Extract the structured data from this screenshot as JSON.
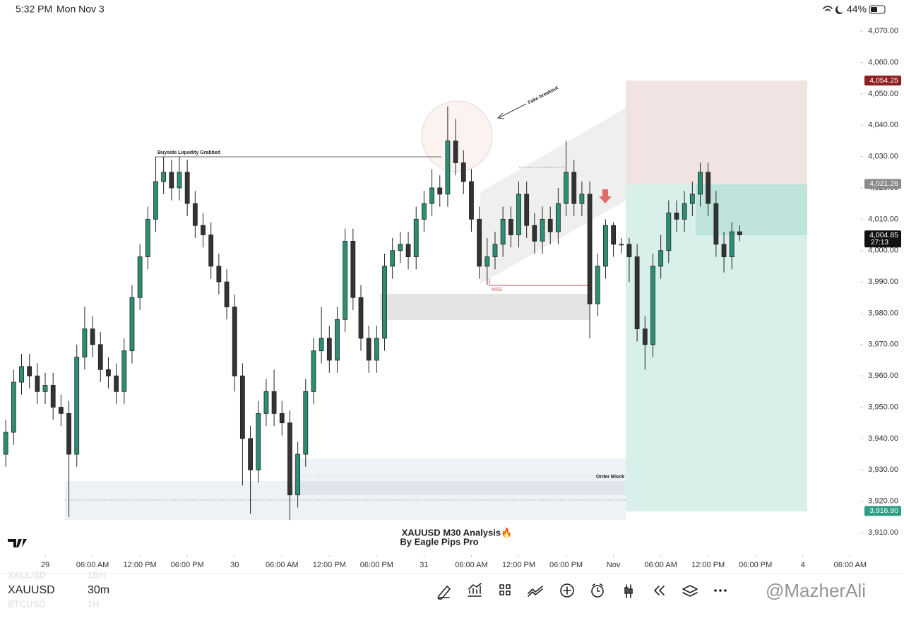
{
  "status_bar": {
    "time": "5:32 PM",
    "date": "Mon Nov 3",
    "battery": "44%"
  },
  "chart_data": {
    "type": "candlestick",
    "title": "XAUUSD M30 Analysis🔥",
    "subtitle": "By Eagle Pips Pro",
    "x": [
      -5,
      -4,
      -3,
      -2,
      -1,
      0,
      1,
      2,
      3,
      4,
      5,
      6,
      7,
      8,
      9,
      10,
      11,
      12,
      13,
      14,
      15,
      16,
      17,
      18,
      19,
      20,
      21,
      22,
      23,
      24,
      25,
      26,
      27,
      28,
      29,
      30,
      31,
      32,
      33,
      34,
      35,
      36,
      37,
      38,
      39,
      40,
      41,
      42,
      43,
      44,
      45,
      46,
      47,
      48,
      49,
      50,
      51,
      52,
      53,
      54,
      55,
      56,
      57,
      58,
      59,
      60,
      61,
      62,
      63,
      64,
      65,
      66,
      67,
      68,
      69,
      70,
      71,
      72,
      73,
      74,
      75,
      76,
      77,
      78,
      79,
      80,
      81,
      82,
      83,
      84,
      85,
      86,
      87,
      88
    ],
    "open": [
      3935,
      3942,
      3958,
      3963,
      3960,
      3955,
      3957,
      3950,
      3948,
      3935,
      3966,
      3975,
      3970,
      3962,
      3960,
      3955,
      3968,
      3985,
      3998,
      4010,
      4022,
      4025,
      4020,
      4025,
      4015,
      4008,
      4005,
      3995,
      3990,
      3982,
      3960,
      3940,
      3930,
      3948,
      3955,
      3948,
      3945,
      3922,
      3935,
      3955,
      3968,
      3972,
      3965,
      3978,
      4003,
      3985,
      3972,
      3965,
      3972,
      3995,
      4000,
      4002,
      3998,
      4010,
      4015,
      4020,
      4018,
      4035,
      4028,
      4022,
      4010,
      3995,
      3998,
      4002,
      4010,
      4005,
      4018,
      4008,
      4003,
      4010,
      4006,
      4015,
      4025,
      4015,
      4018,
      3983,
      3995,
      4008,
      4002,
      4002,
      3998,
      3975,
      3970,
      3995,
      4000,
      4012,
      4010,
      4015,
      4018,
      4025,
      4015,
      4002,
      3998,
      4006
    ],
    "high": [
      3946,
      3962,
      3967,
      3967,
      3964,
      3961,
      3961,
      3954,
      3952,
      3970,
      3982,
      3979,
      3974,
      3966,
      3964,
      3972,
      3989,
      4002,
      4014,
      4030,
      4030,
      4029,
      4030,
      4029,
      4019,
      4012,
      4009,
      3999,
      3994,
      3986,
      3964,
      3944,
      3952,
      3959,
      3962,
      3952,
      3949,
      3939,
      3959,
      3972,
      3982,
      3976,
      3982,
      4007,
      4007,
      3989,
      3976,
      3976,
      3999,
      4004,
      4006,
      4006,
      4014,
      4019,
      4026,
      4024,
      4046,
      4042,
      4032,
      4026,
      4014,
      4004,
      4006,
      4014,
      4014,
      4022,
      4022,
      4012,
      4014,
      4014,
      4020,
      4035,
      4029,
      4022,
      4022,
      3999,
      4010,
      4009,
      4004,
      4004,
      4002,
      3979,
      3999,
      4005,
      4016,
      4016,
      4019,
      4022,
      4028,
      4028,
      4019,
      4006,
      4009,
      4008
    ],
    "low": [
      3931,
      3938,
      3954,
      3956,
      3951,
      3951,
      3946,
      3944,
      3915,
      3931,
      3962,
      3966,
      3958,
      3956,
      3951,
      3951,
      3964,
      3981,
      3994,
      4006,
      4018,
      4016,
      4016,
      4011,
      4004,
      4001,
      3991,
      3986,
      3978,
      3955,
      3925,
      3916,
      3926,
      3944,
      3944,
      3941,
      3914,
      3918,
      3931,
      3951,
      3964,
      3961,
      3961,
      3974,
      3981,
      3968,
      3961,
      3961,
      3968,
      3991,
      3996,
      3994,
      3994,
      4006,
      4011,
      4014,
      4014,
      4024,
      4018,
      4006,
      3991,
      3989,
      3994,
      3998,
      4001,
      4001,
      4004,
      3999,
      3999,
      4002,
      4002,
      4011,
      4011,
      4011,
      3972,
      3979,
      3991,
      3998,
      3999,
      3990,
      3971,
      3962,
      3966,
      3991,
      3996,
      4006,
      4006,
      4011,
      4014,
      4011,
      3998,
      3993,
      3994,
      4003
    ],
    "close": [
      3942,
      3958,
      3963,
      3960,
      3955,
      3957,
      3950,
      3948,
      3935,
      3966,
      3975,
      3970,
      3962,
      3960,
      3955,
      3968,
      3985,
      3998,
      4010,
      4022,
      4025,
      4020,
      4025,
      4015,
      4008,
      4005,
      3995,
      3990,
      3982,
      3960,
      3940,
      3930,
      3948,
      3955,
      3948,
      3945,
      3922,
      3935,
      3955,
      3968,
      3972,
      3965,
      3978,
      4003,
      3985,
      3972,
      3965,
      3972,
      3995,
      4000,
      4002,
      3998,
      4010,
      4015,
      4020,
      4018,
      4035,
      4028,
      4022,
      4010,
      3995,
      3998,
      4002,
      4010,
      4005,
      4018,
      4008,
      4003,
      4010,
      4006,
      4015,
      4025,
      4015,
      4018,
      3983,
      3995,
      4008,
      4002,
      4002,
      3998,
      3975,
      3970,
      3995,
      4000,
      4012,
      4010,
      4015,
      4018,
      4025,
      4015,
      4002,
      3998,
      4006,
      4005
    ],
    "up_color": "#2a8f75",
    "down_color": "#333333",
    "xlim": [
      -5.73,
      103
    ],
    "ylim": [
      3903,
      4073.2
    ],
    "xticks": [
      {
        "value": 0,
        "label": "29"
      },
      {
        "value": 6,
        "label": "06:00 AM"
      },
      {
        "value": 12,
        "label": "12:00 PM"
      },
      {
        "value": 18,
        "label": "06:00 PM"
      },
      {
        "value": 24,
        "label": "30"
      },
      {
        "value": 30,
        "label": "06:00 AM"
      },
      {
        "value": 36,
        "label": "12:00 PM"
      },
      {
        "value": 42,
        "label": "06:00 PM"
      },
      {
        "value": 48,
        "label": "31"
      },
      {
        "value": 54,
        "label": "06:00 AM"
      },
      {
        "value": 60,
        "label": "12:00 PM"
      },
      {
        "value": 66,
        "label": "06:00 PM"
      },
      {
        "value": 72,
        "label": "Nov"
      },
      {
        "value": 78,
        "label": "06:00 AM"
      },
      {
        "value": 84,
        "label": "12:00 PM"
      },
      {
        "value": 90,
        "label": "06:00 PM"
      },
      {
        "value": 96,
        "label": "4"
      },
      {
        "value": 102,
        "label": "06:00 AM"
      }
    ],
    "yticks": [
      {
        "value": 3910,
        "label": "3,910.00"
      },
      {
        "value": 3920,
        "label": "3,920.00"
      },
      {
        "value": 3930,
        "label": "3,930.00"
      },
      {
        "value": 3940,
        "label": "3,940.00"
      },
      {
        "value": 3950,
        "label": "3,950.00"
      },
      {
        "value": 3960,
        "label": "3,960.00"
      },
      {
        "value": 3970,
        "label": "3,970.00"
      },
      {
        "value": 3980,
        "label": "3,980.00"
      },
      {
        "value": 3990,
        "label": "3,990.00"
      },
      {
        "value": 4000,
        "label": "4,000.00"
      },
      {
        "value": 4010,
        "label": "4,010.00"
      },
      {
        "value": 4020,
        "label": "4,020.00"
      },
      {
        "value": 4030,
        "label": "4,030.00"
      },
      {
        "value": 4040,
        "label": "4,040.00"
      },
      {
        "value": 4050,
        "label": "4,050.00"
      },
      {
        "value": 4060,
        "label": "4,060.00"
      },
      {
        "value": 4070,
        "label": "4,070.00"
      }
    ],
    "price_labels": [
      {
        "value": 4054.25,
        "label": "4,054.25",
        "color": "#8e1f1f"
      },
      {
        "value": 4021.26,
        "label": "4,021.26",
        "color": "#8a8a8a"
      },
      {
        "value": 4004.85,
        "label": "4,004.85",
        "color": "#111111"
      },
      {
        "value": 3916.9,
        "label": "3,916.90",
        "color": "#2a9d84"
      }
    ],
    "countdown": "27:13",
    "annotations": {
      "buyside": "Buyside Liquidity Grabbed",
      "fake_breakout": "Fake breakout",
      "mss": "MSS",
      "order_block": "Order Block"
    }
  },
  "watchlist": [
    {
      "symbol": "XAUUSD",
      "interval": "15m"
    },
    {
      "symbol": "XAUUSD",
      "interval": "30m"
    },
    {
      "symbol": "BTCUSD",
      "interval": "1H"
    }
  ],
  "watermark": "@MazherAli"
}
